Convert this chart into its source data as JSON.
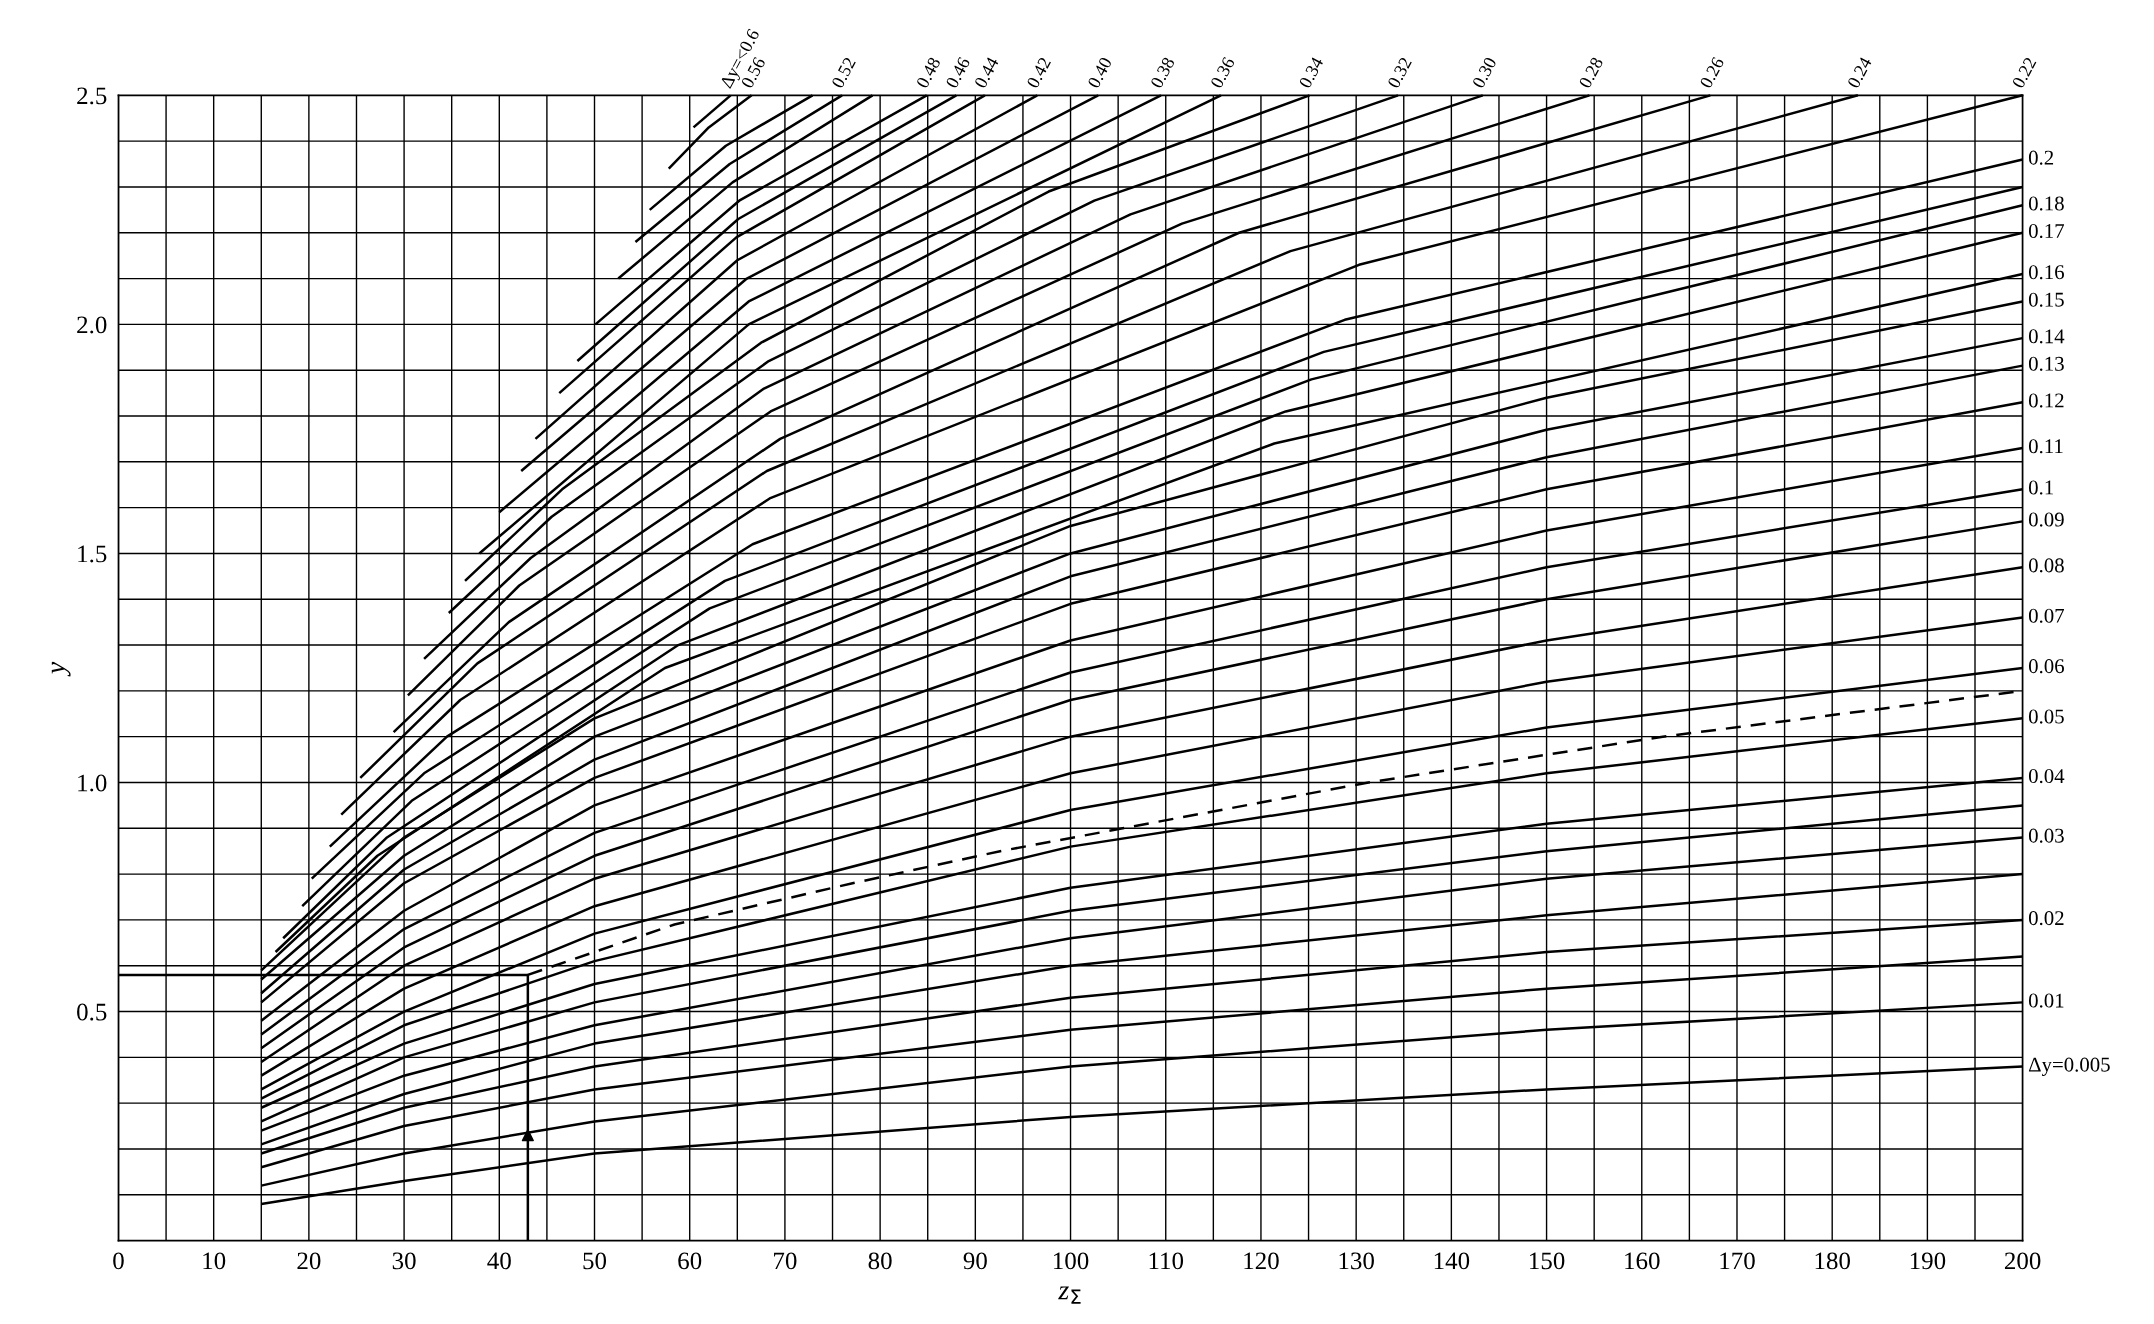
{
  "chart_data": {
    "type": "line",
    "xlabel": "z$_{Σ}$",
    "ylabel": "y",
    "xlim": [
      0,
      200
    ],
    "ylim": [
      0,
      2.5
    ],
    "grid": true,
    "legend": false,
    "xticks": [
      0,
      {
        "value": 5,
        "label": null
      },
      10,
      {
        "value": 15,
        "label": null
      },
      20,
      {
        "value": 25,
        "label": null
      },
      30,
      {
        "value": 35,
        "label": null
      },
      40,
      {
        "value": 45,
        "label": null
      },
      50,
      {
        "value": 55,
        "label": null
      },
      60,
      {
        "value": 65,
        "label": null
      },
      70,
      {
        "value": 75,
        "label": null
      },
      80,
      {
        "value": 85,
        "label": null
      },
      90,
      {
        "value": 95,
        "label": null
      },
      100,
      {
        "value": 105,
        "label": null
      },
      110,
      {
        "value": 115,
        "label": null
      },
      120,
      {
        "value": 125,
        "label": null
      },
      130,
      {
        "value": 135,
        "label": null
      },
      140,
      {
        "value": 145,
        "label": null
      },
      150,
      {
        "value": 155,
        "label": null
      },
      160,
      {
        "value": 165,
        "label": null
      },
      170,
      {
        "value": 175,
        "label": null
      },
      180,
      {
        "value": 185,
        "label": null
      },
      190,
      {
        "value": 195,
        "label": null
      },
      200
    ],
    "yticks": [
      {
        "value": 0.1,
        "label": null
      },
      {
        "value": 0.2,
        "label": null
      },
      {
        "value": 0.3,
        "label": null
      },
      {
        "value": 0.4,
        "label": null
      },
      0.5,
      {
        "value": 0.6,
        "label": null
      },
      {
        "value": 0.7,
        "label": null
      },
      {
        "value": 0.8,
        "label": null
      },
      {
        "value": 0.9,
        "label": null
      },
      {
        "value": 1,
        "label": "1.0"
      },
      {
        "value": 1.1,
        "label": null
      },
      {
        "value": 1.2,
        "label": null
      },
      {
        "value": 1.3,
        "label": null
      },
      {
        "value": 1.4,
        "label": null
      },
      1.5,
      {
        "value": 1.6,
        "label": null
      },
      {
        "value": 1.7,
        "label": null
      },
      {
        "value": 1.8,
        "label": null
      },
      {
        "value": 1.9,
        "label": null
      },
      {
        "value": 2,
        "label": "2.0"
      },
      {
        "value": 2.1,
        "label": null
      },
      {
        "value": 2.2,
        "label": null
      },
      {
        "value": 2.3,
        "label": null
      },
      {
        "value": 2.4,
        "label": null
      },
      2.5
    ],
    "series": [
      {
        "type": "line",
        "name": "Δy=0.005",
        "color": "#000000",
        "x": [
          15,
          30,
          50,
          100,
          150,
          200
        ],
        "values": [
          0.08,
          0.13,
          0.19,
          0.27,
          0.33,
          0.38
        ]
      },
      {
        "type": "line",
        "name": "0.01",
        "color": "#000000",
        "x": [
          15,
          30,
          50,
          100,
          150,
          200
        ],
        "values": [
          0.12,
          0.19,
          0.26,
          0.38,
          0.46,
          0.52
        ]
      },
      {
        "type": "line",
        "color": "#000000",
        "x": [
          15,
          30,
          50,
          100,
          150,
          200
        ],
        "values": [
          0.16,
          0.25,
          0.33,
          0.46,
          0.55,
          0.62
        ]
      },
      {
        "type": "line",
        "name": "0.02",
        "color": "#000000",
        "x": [
          15,
          30,
          50,
          100,
          150,
          200
        ],
        "values": [
          0.19,
          0.29,
          0.38,
          0.53,
          0.63,
          0.7
        ]
      },
      {
        "type": "line",
        "color": "#000000",
        "x": [
          15,
          30,
          50,
          100,
          150,
          200
        ],
        "values": [
          0.21,
          0.32,
          0.43,
          0.6,
          0.71,
          0.8
        ]
      },
      {
        "type": "line",
        "name": "0.03",
        "color": "#000000",
        "x": [
          15,
          30,
          50,
          100,
          150,
          200
        ],
        "values": [
          0.24,
          0.36,
          0.47,
          0.66,
          0.79,
          0.88
        ]
      },
      {
        "type": "line",
        "color": "#000000",
        "x": [
          15,
          30,
          50,
          100,
          150,
          200
        ],
        "values": [
          0.26,
          0.4,
          0.52,
          0.72,
          0.85,
          0.95
        ]
      },
      {
        "type": "line",
        "name": "0.04",
        "color": "#000000",
        "x": [
          15,
          30,
          50,
          100,
          150,
          200
        ],
        "values": [
          0.29,
          0.43,
          0.56,
          0.77,
          0.91,
          1.01
        ]
      },
      {
        "type": "line",
        "name": "0.05",
        "color": "#000000",
        "x": [
          15,
          30,
          50,
          100,
          150,
          200
        ],
        "values": [
          0.31,
          0.47,
          0.61,
          0.86,
          1.02,
          1.14
        ]
      },
      {
        "type": "line",
        "name": "0.06",
        "color": "#000000",
        "x": [
          15,
          30,
          50,
          100,
          150,
          200
        ],
        "values": [
          0.33,
          0.5,
          0.67,
          0.94,
          1.12,
          1.25
        ]
      },
      {
        "type": "line",
        "name": "0.07",
        "color": "#000000",
        "x": [
          15,
          30,
          50,
          100,
          150,
          200
        ],
        "values": [
          0.36,
          0.55,
          0.73,
          1.02,
          1.22,
          1.36
        ]
      },
      {
        "type": "line",
        "name": "0.08",
        "color": "#000000",
        "x": [
          15,
          30,
          50,
          100,
          150,
          200
        ],
        "values": [
          0.39,
          0.6,
          0.79,
          1.1,
          1.31,
          1.47
        ]
      },
      {
        "type": "line",
        "name": "0.09",
        "color": "#000000",
        "x": [
          15,
          30,
          50,
          100,
          150,
          200
        ],
        "values": [
          0.42,
          0.64,
          0.84,
          1.18,
          1.4,
          1.57
        ]
      },
      {
        "type": "line",
        "name": "0.1",
        "color": "#000000",
        "x": [
          15,
          30,
          50,
          100,
          150,
          200
        ],
        "values": [
          0.45,
          0.68,
          0.89,
          1.24,
          1.47,
          1.64
        ]
      },
      {
        "type": "line",
        "name": "0.11",
        "color": "#000000",
        "x": [
          15,
          30,
          50,
          100,
          150,
          200
        ],
        "values": [
          0.48,
          0.72,
          0.95,
          1.31,
          1.55,
          1.73
        ]
      },
      {
        "type": "line",
        "name": "0.12",
        "color": "#000000",
        "x": [
          15,
          30,
          50,
          100,
          150,
          200
        ],
        "values": [
          0.52,
          0.78,
          1.01,
          1.39,
          1.64,
          1.83
        ]
      },
      {
        "type": "line",
        "name": "0.13",
        "color": "#000000",
        "x": [
          15,
          30,
          50,
          100,
          150,
          200
        ],
        "values": [
          0.54,
          0.81,
          1.05,
          1.45,
          1.71,
          1.91
        ]
      },
      {
        "type": "line",
        "name": "0.14",
        "color": "#000000",
        "x": [
          15,
          30,
          50,
          100,
          150,
          200
        ],
        "values": [
          0.57,
          0.84,
          1.1,
          1.5,
          1.77,
          1.97
        ]
      },
      {
        "type": "line",
        "name": "0.15",
        "color": "#000000",
        "x": [
          15,
          30,
          50,
          100,
          150,
          200
        ],
        "values": [
          0.59,
          0.88,
          1.14,
          1.56,
          1.84,
          2.05
        ]
      },
      {
        "type": "line",
        "name": "0.16",
        "color": "#000000",
        "x": [
          16.5,
          27.2,
          57.4,
          121.4,
          200
        ],
        "values": [
          0.63,
          0.84,
          1.25,
          1.74,
          2.11
        ]
      },
      {
        "type": "line",
        "name": "0.17",
        "color": "#000000",
        "x": [
          17.3,
          28.2,
          58.8,
          122.6,
          200
        ],
        "values": [
          0.66,
          0.88,
          1.3,
          1.81,
          2.2
        ]
      },
      {
        "type": "line",
        "name": "0.18",
        "color": "#000000",
        "x": [
          19.3,
          30.8,
          62.1,
          125.3,
          200
        ],
        "values": [
          0.73,
          0.96,
          1.38,
          1.88,
          2.26
        ]
      },
      {
        "type": "line",
        "color": "#000000",
        "x": [
          20.3,
          32.1,
          63.7,
          126.6,
          200
        ],
        "values": [
          0.79,
          1.02,
          1.44,
          1.94,
          2.3
        ]
      },
      {
        "type": "line",
        "name": "0.2",
        "color": "#000000",
        "x": [
          22.2,
          34.5,
          66.6,
          128.8,
          200
        ],
        "values": [
          0.86,
          1.1,
          1.52,
          2.01,
          2.36
        ]
      },
      {
        "type": "line",
        "name": "0.22",
        "color": "#000000",
        "x": [
          23.4,
          35.9,
          68.4,
          130.3,
          200
        ],
        "values": [
          0.93,
          1.18,
          1.62,
          2.13,
          2.5
        ]
      },
      {
        "type": "line",
        "name": "0.24",
        "color": "#000000",
        "x": [
          25.4,
          37.7,
          68.1,
          123.1,
          182.7
        ],
        "values": [
          1.01,
          1.26,
          1.68,
          2.16,
          2.5
        ]
      },
      {
        "type": "line",
        "name": "0.26",
        "color": "#000000",
        "x": [
          28.9,
          41.0,
          69.5,
          117.7,
          167.2
        ],
        "values": [
          1.11,
          1.35,
          1.75,
          2.2,
          2.5
        ]
      },
      {
        "type": "line",
        "name": "0.28",
        "color": "#000000",
        "x": [
          30.4,
          42.1,
          68.5,
          111.7,
          154.5
        ],
        "values": [
          1.19,
          1.43,
          1.81,
          2.22,
          2.5
        ]
      },
      {
        "type": "line",
        "name": "0.30",
        "color": "#000000",
        "x": [
          32.1,
          43.3,
          67.8,
          106.3,
          143.3
        ],
        "values": [
          1.27,
          1.49,
          1.86,
          2.24,
          2.5
        ]
      },
      {
        "type": "line",
        "name": "0.32",
        "color": "#000000",
        "x": [
          34.7,
          45.5,
          68.3,
          102.5,
          134.4
        ],
        "values": [
          1.37,
          1.58,
          1.92,
          2.27,
          2.5
        ]
      },
      {
        "type": "line",
        "name": "0.34",
        "color": "#000000",
        "x": [
          36.4,
          46.6,
          67.5,
          97.7,
          125.1
        ],
        "values": [
          1.44,
          1.64,
          1.96,
          2.29,
          2.5
        ]
      },
      {
        "type": "line",
        "name": "0.36",
        "color": "#000000",
        "x": [
          37.9,
          66.2,
          115.8
        ],
        "values": [
          1.5,
          2.0,
          2.5
        ]
      },
      {
        "type": "line",
        "name": "0.38",
        "color": "#000000",
        "x": [
          40.0,
          66.2,
          109.5
        ],
        "values": [
          1.59,
          2.05,
          2.5
        ]
      },
      {
        "type": "line",
        "name": "0.40",
        "color": "#000000",
        "x": [
          42.3,
          66.0,
          102.9
        ],
        "values": [
          1.68,
          2.1,
          2.5
        ]
      },
      {
        "type": "line",
        "name": "0.42",
        "color": "#000000",
        "x": [
          43.8,
          65.0,
          96.5
        ],
        "values": [
          1.75,
          2.14,
          2.5
        ]
      },
      {
        "type": "line",
        "name": "0.44",
        "color": "#000000",
        "x": [
          46.3,
          64.9,
          91.0
        ],
        "values": [
          1.85,
          2.19,
          2.5
        ]
      },
      {
        "type": "line",
        "name": "0.46",
        "color": "#000000",
        "x": [
          48.2,
          65.1,
          88.0
        ],
        "values": [
          1.92,
          2.23,
          2.5
        ]
      },
      {
        "type": "line",
        "name": "0.48",
        "color": "#000000",
        "x": [
          50.1,
          65.2,
          84.9
        ],
        "values": [
          2.0,
          2.27,
          2.5
        ]
      },
      {
        "type": "line",
        "color": "#000000",
        "x": [
          52.5,
          64.5,
          79.2
        ],
        "values": [
          2.1,
          2.31,
          2.5
        ]
      },
      {
        "type": "line",
        "name": "0.52",
        "color": "#000000",
        "x": [
          54.3,
          64.2,
          76.0
        ],
        "values": [
          2.18,
          2.35,
          2.5
        ]
      },
      {
        "type": "line",
        "color": "#000000",
        "x": [
          55.8,
          63.8,
          72.9
        ],
        "values": [
          2.25,
          2.39,
          2.5
        ]
      },
      {
        "type": "line",
        "name": "0.56",
        "color": "#000000",
        "x": [
          57.8,
          62.0,
          66.5
        ],
        "values": [
          2.34,
          2.43,
          2.5
        ]
      },
      {
        "type": "line",
        "name": "Δy=<0.6",
        "color": "#000000",
        "x": [
          60.4,
          64.3
        ],
        "values": [
          2.43,
          2.5
        ]
      },
      {
        "type": "line",
        "line_style": "dashed",
        "color": "#000000",
        "x": [
          43,
          58.4,
          77.1,
          92.6,
          131.3,
          162.2,
          200
        ],
        "values": [
          0.58,
          0.69,
          0.78,
          0.85,
          1.0,
          1.1,
          1.2
        ]
      },
      {
        "type": "line",
        "color": "#000000",
        "x": [
          0,
          43,
          43
        ],
        "values": [
          0.58,
          0.58,
          0
        ]
      },
      {
        "type": "scatter",
        "marker": "triangle",
        "color": "#000000",
        "x": [
          43
        ],
        "values": [
          0.23
        ]
      }
    ]
  }
}
